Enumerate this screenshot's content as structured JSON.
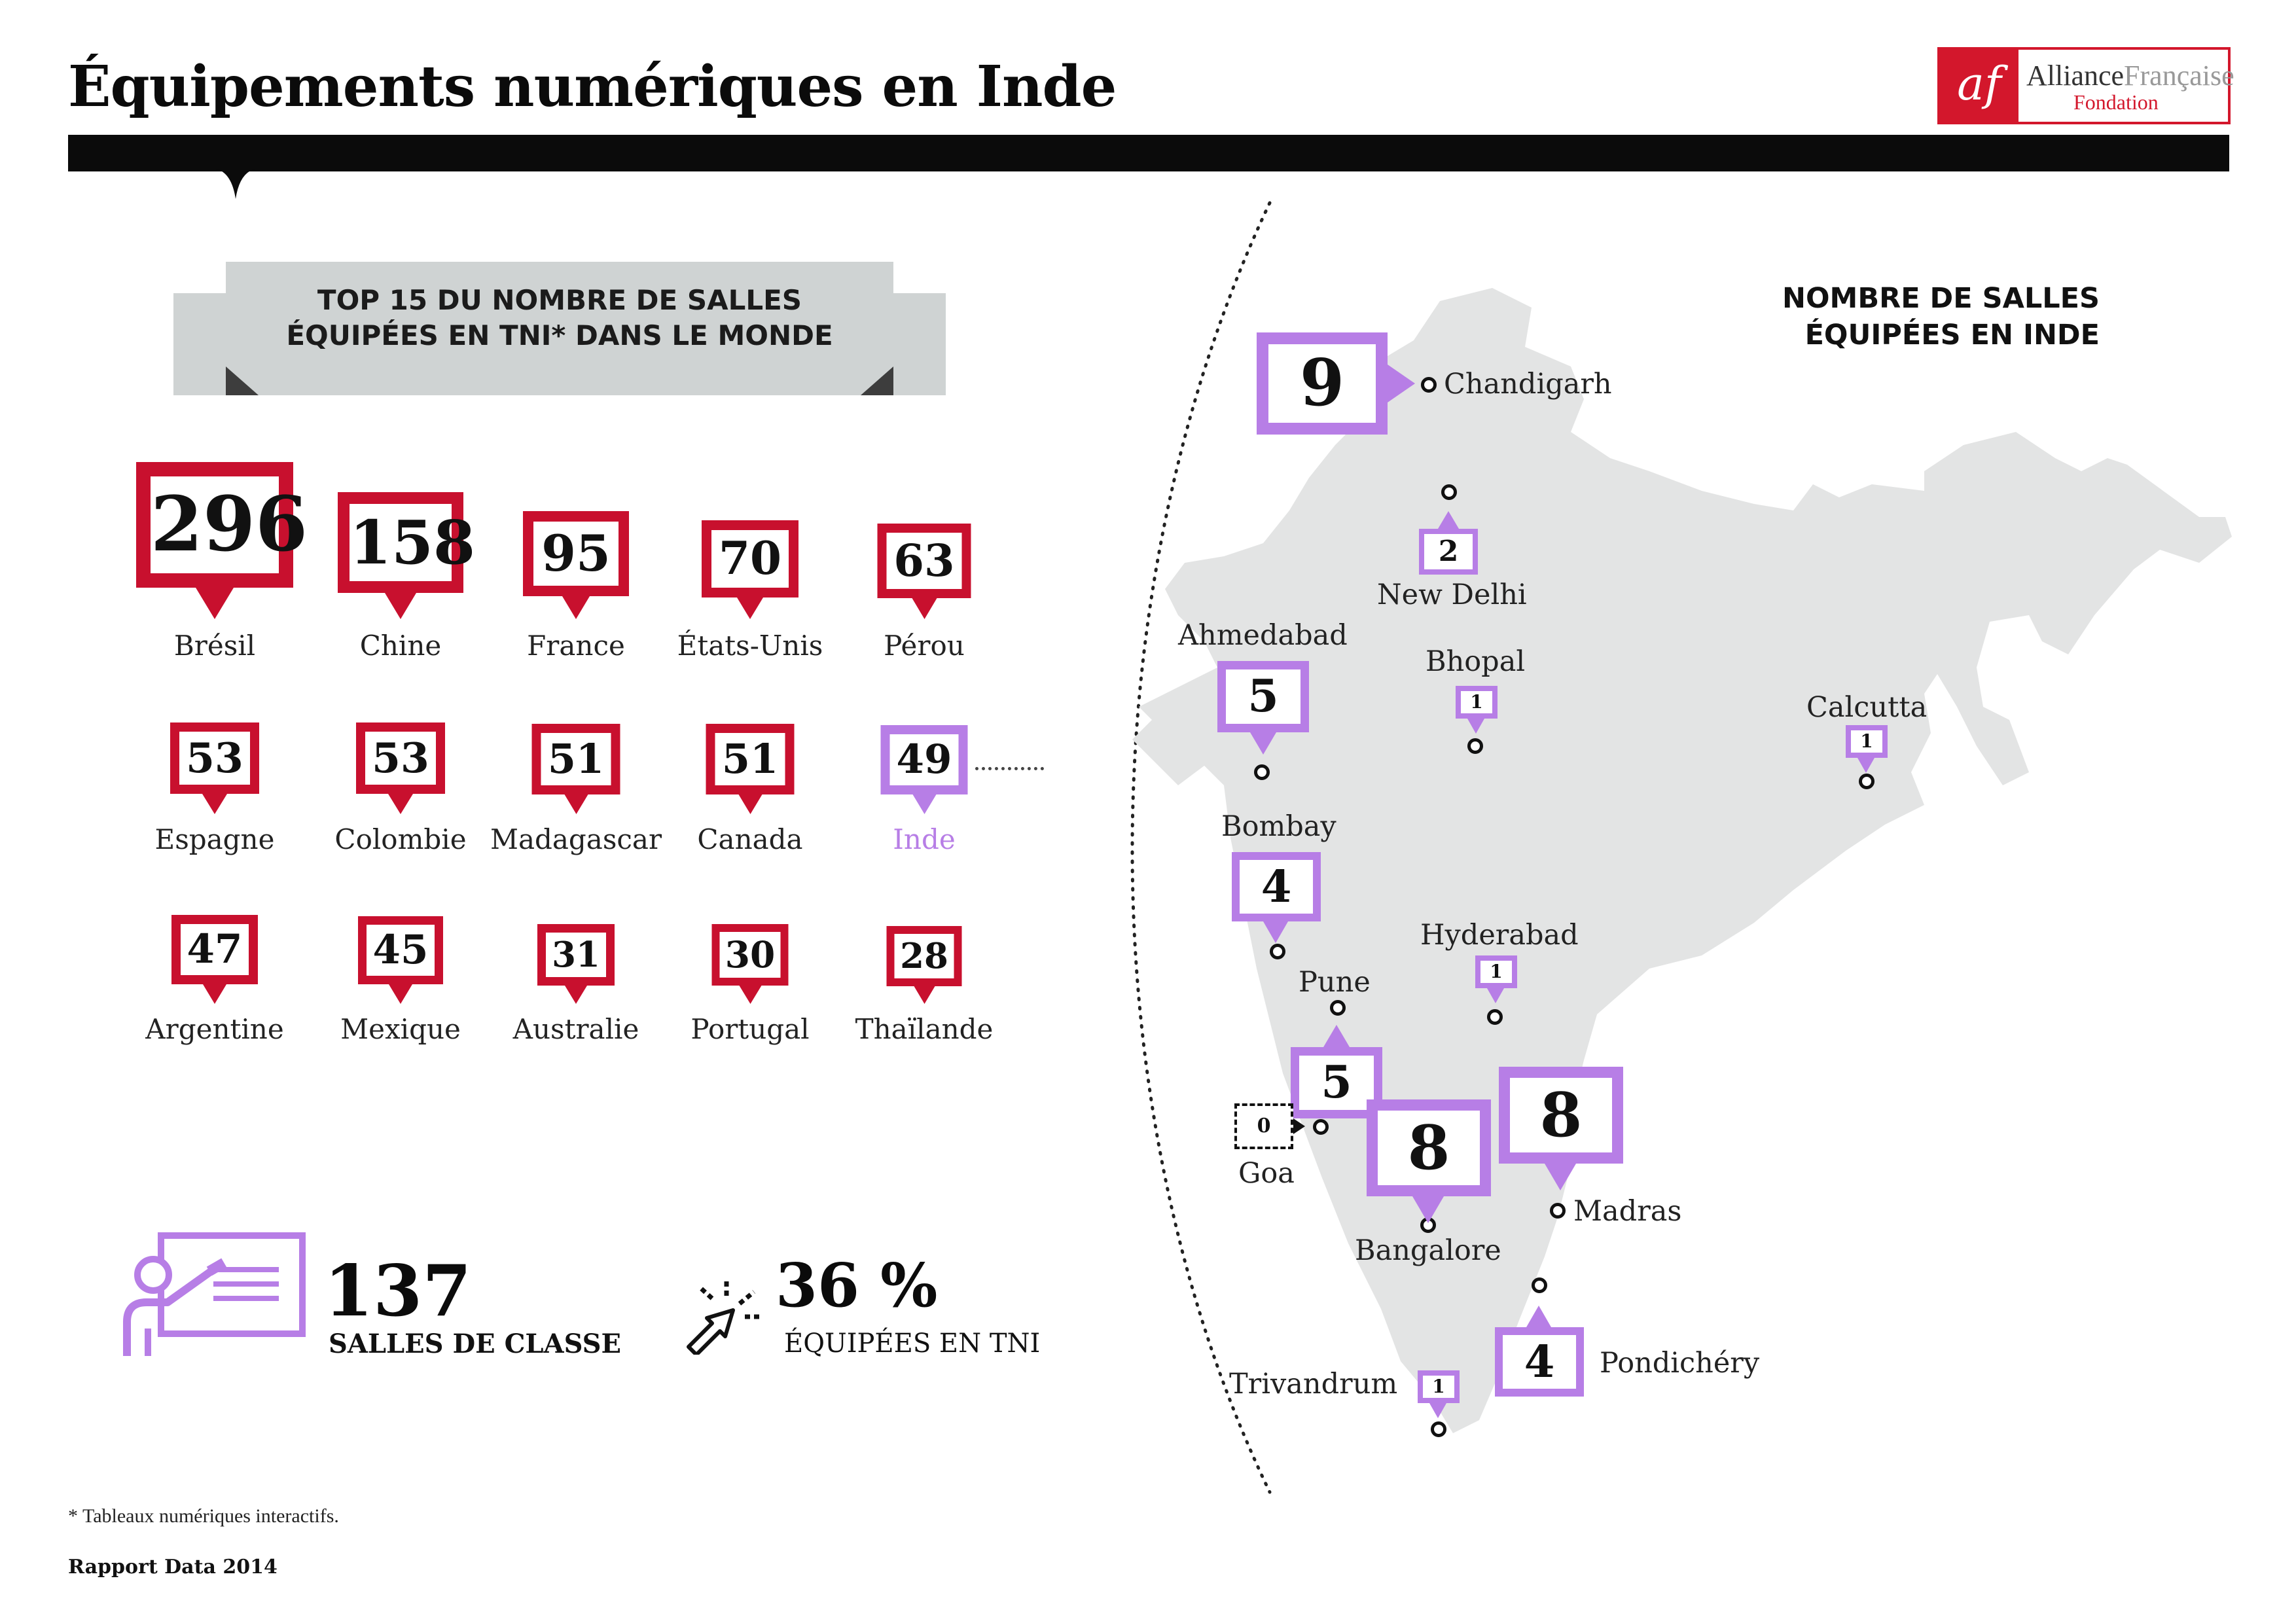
{
  "title": "Équipements numériques en Inde",
  "logo": {
    "mark": "af",
    "name_part1": "Alliance",
    "name_part2": "Française",
    "subtitle": "Fondation"
  },
  "colors": {
    "red": "#c8102e",
    "purple": "#b77ee6",
    "grey_map": "#e3e4e4",
    "black": "#0b0b0b"
  },
  "top15": {
    "title_line1": "TOP 15 DU NOMBRE DE SALLES",
    "title_line2": "ÉQUIPÉES EN TNI* DANS LE MONDE",
    "countries": [
      {
        "name": "Brésil",
        "value": "296"
      },
      {
        "name": "Chine",
        "value": "158"
      },
      {
        "name": "France",
        "value": "95"
      },
      {
        "name": "États-Unis",
        "value": "70"
      },
      {
        "name": "Pérou",
        "value": "63"
      },
      {
        "name": "Espagne",
        "value": "53"
      },
      {
        "name": "Colombie",
        "value": "53"
      },
      {
        "name": "Madagascar",
        "value": "51"
      },
      {
        "name": "Canada",
        "value": "51"
      },
      {
        "name": "Inde",
        "value": "49"
      },
      {
        "name": "Argentine",
        "value": "47"
      },
      {
        "name": "Mexique",
        "value": "45"
      },
      {
        "name": "Australie",
        "value": "31"
      },
      {
        "name": "Portugal",
        "value": "30"
      },
      {
        "name": "Thaïlande",
        "value": "28"
      }
    ]
  },
  "stats": {
    "classrooms_value": "137",
    "classrooms_label": "SALLES DE CLASSE",
    "percent_value": "36 %",
    "percent_label": "ÉQUIPÉES EN TNI"
  },
  "india": {
    "title_line1": "NOMBRE DE SALLES",
    "title_line2": "ÉQUIPÉES EN INDE",
    "cities": [
      {
        "name": "Chandigarh",
        "value": "9"
      },
      {
        "name": "New Delhi",
        "value": "2"
      },
      {
        "name": "Ahmedabad",
        "value": "5"
      },
      {
        "name": "Bhopal",
        "value": "1"
      },
      {
        "name": "Calcutta",
        "value": "1"
      },
      {
        "name": "Bombay",
        "value": "4"
      },
      {
        "name": "Hyderabad",
        "value": "1"
      },
      {
        "name": "Pune",
        "value": "5"
      },
      {
        "name": "Goa",
        "value": "0"
      },
      {
        "name": "Bangalore",
        "value": "8"
      },
      {
        "name": "Madras",
        "value": "8"
      },
      {
        "name": "Pondichéry",
        "value": "4"
      },
      {
        "name": "Trivandrum",
        "value": "1"
      }
    ]
  },
  "footnote": "* Tableaux numériques interactifs.",
  "source": "Rapport Data 2014"
}
